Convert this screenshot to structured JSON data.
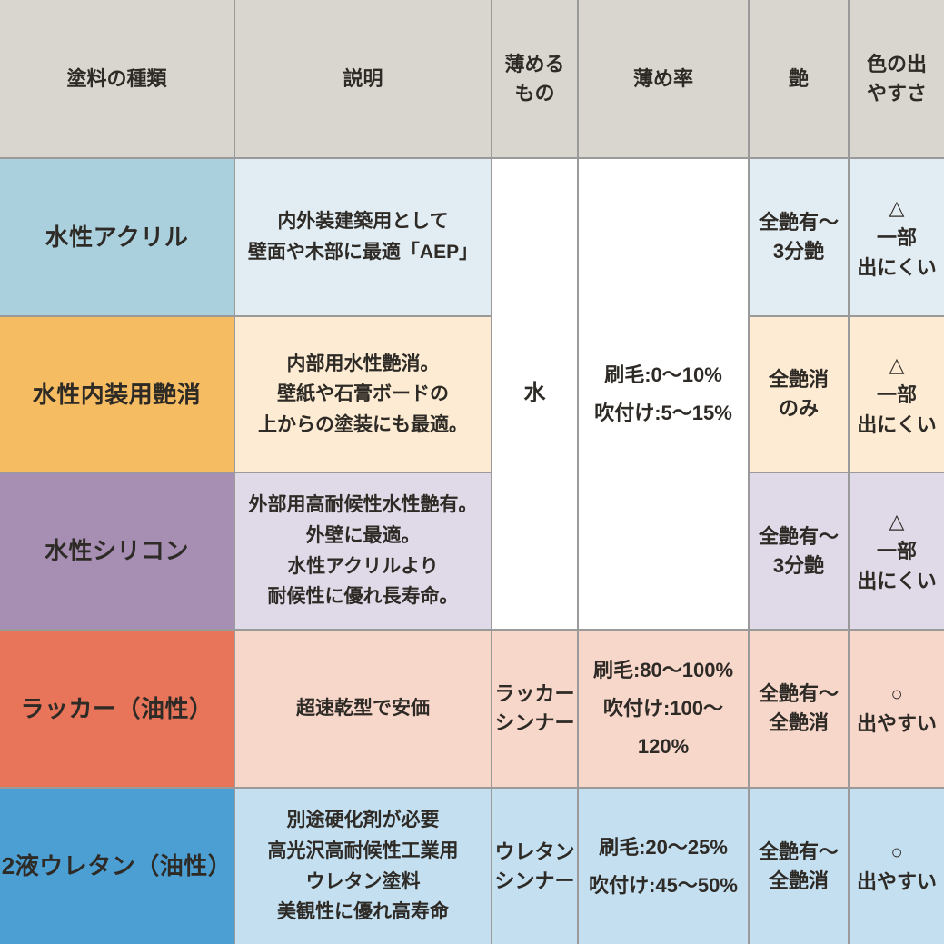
{
  "colors": {
    "header_bg": "#d9d6d0",
    "gridline": "#9a9a9a",
    "text": "#2e2a26",
    "white": "#ffffff"
  },
  "chart_data": {
    "type": "table",
    "header": {
      "paint_type": "塗料の種類",
      "description": "説明",
      "thinner": "薄める\nもの",
      "dilution_rate": "薄め率",
      "gloss": "艶",
      "color_ease": "色の出\nやすさ"
    },
    "merged_rows_1_to_3": {
      "thinner": "水",
      "dilution_rate": "刷毛:0〜10%\n吹付け:5〜15%"
    },
    "rows": [
      {
        "type": "水性アクリル",
        "description": "内外装建築用として\n壁面や木部に最適「AEP」",
        "thinner": "水",
        "dilution_rate": "刷毛:0〜10% 吹付け:5〜15%",
        "gloss": "全艶有〜\n3分艶",
        "color_ease": "△\n一部\n出にくい",
        "accent": "#aad0dd",
        "tint": "#e2edf3"
      },
      {
        "type": "水性内装用艶消",
        "description": "内部用水性艶消。\n壁紙や石膏ボードの\n上からの塗装にも最適。",
        "thinner": "水",
        "dilution_rate": "刷毛:0〜10% 吹付け:5〜15%",
        "gloss": "全艶消\nのみ",
        "color_ease": "△\n一部\n出にくい",
        "accent": "#f6bc61",
        "tint": "#fdecd3"
      },
      {
        "type": "水性シリコン",
        "description": "外部用高耐候性水性艶有。\n外壁に最適。\n水性アクリルより\n耐候性に優れ長寿命。",
        "thinner": "水",
        "dilution_rate": "刷毛:0〜10% 吹付け:5〜15%",
        "gloss": "全艶有〜\n3分艶",
        "color_ease": "△\n一部\n出にくい",
        "accent": "#a78fb4",
        "tint": "#e0d9e7"
      },
      {
        "type": "ラッカー（油性）",
        "description": "超速乾型で安価",
        "thinner": "ラッカー\nシンナー",
        "dilution_rate": "刷毛:80〜100%\n吹付け:100〜120%",
        "gloss": "全艶有〜\n全艶消",
        "color_ease": "○\n出やすい",
        "accent": "#e8745a",
        "tint": "#f8d7cb"
      },
      {
        "type": "2液ウレタン（油性）",
        "description": "別途硬化剤が必要\n高光沢高耐候性工業用\nウレタン塗料\n美観性に優れ高寿命",
        "thinner": "ウレタン\nシンナー",
        "dilution_rate": "刷毛:20〜25%\n吹付け:45〜50%",
        "gloss": "全艶有〜\n全艶消",
        "color_ease": "○\n出やすい",
        "accent": "#4b9fd3",
        "tint": "#c3dff0"
      }
    ]
  }
}
